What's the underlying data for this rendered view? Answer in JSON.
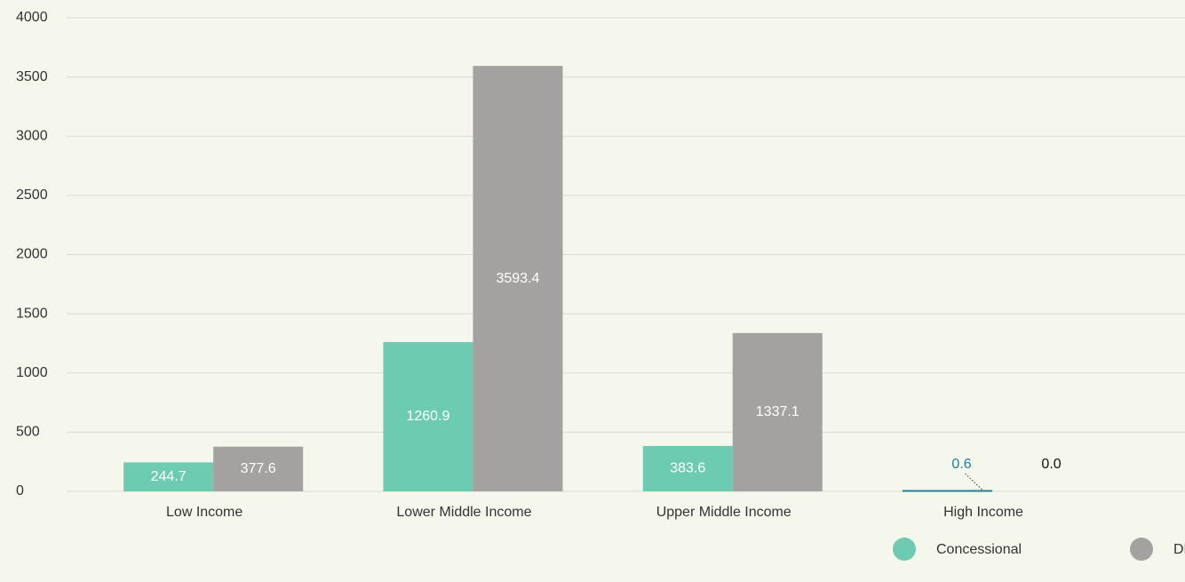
{
  "chart_data": {
    "type": "bar",
    "categories": [
      "Low Income",
      "Lower Middle Income",
      "Upper Middle Income",
      "High Income"
    ],
    "series": [
      {
        "name": "Concessional",
        "color": "#6ccbb0",
        "values": [
          244.7,
          1260.9,
          383.6,
          0.6
        ],
        "value_labels": [
          "244.7",
          "1260.9",
          "383.6",
          "0.6"
        ]
      },
      {
        "name": "DFI",
        "color": "#a3a2a0",
        "values": [
          377.6,
          3593.4,
          1337.1,
          0
        ],
        "value_labels": [
          "377.6",
          "3593.4",
          "1337.1",
          "0.0"
        ]
      }
    ],
    "ylim": [
      0,
      4000
    ],
    "yticks": [
      0,
      500,
      1000,
      1500,
      2000,
      2500,
      3000,
      3500,
      4000
    ],
    "grid": true,
    "legend": "bottom-right"
  }
}
